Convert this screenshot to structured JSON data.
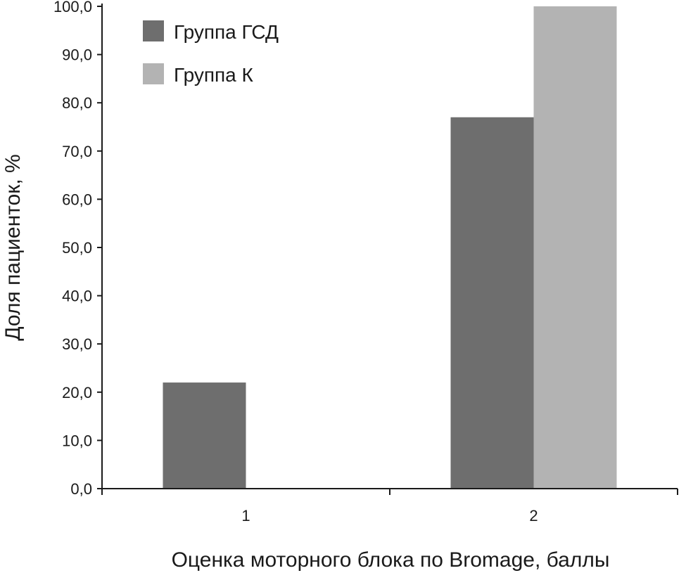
{
  "chart_data": {
    "type": "bar",
    "title": "",
    "xlabel": "Оценка моторного блока по Bromage, баллы",
    "ylabel": "Доля пациенток, %",
    "categories": [
      "1",
      "2"
    ],
    "series": [
      {
        "name": "Группа ГСД",
        "color": "#6e6e6e",
        "values": [
          22.0,
          77.0
        ]
      },
      {
        "name": "Группа К",
        "color": "#b3b3b3",
        "values": [
          0.0,
          100.0
        ]
      }
    ],
    "ylim": [
      0,
      100
    ],
    "ytick_labels": [
      "0,0",
      "10,0",
      "20,0",
      "30,0",
      "40,0",
      "50,0",
      "60,0",
      "70,0",
      "80,0",
      "90,0",
      "100,0"
    ],
    "grid": false,
    "legend_position": "top-left"
  }
}
